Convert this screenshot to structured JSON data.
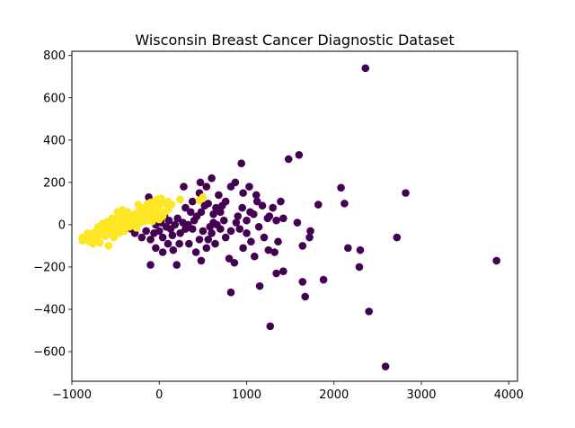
{
  "chart_data": {
    "type": "scatter",
    "title": "Wisconsin Breast Cancer Diagnostic Dataset",
    "xlabel": "",
    "ylabel": "",
    "xlim": [
      -1000,
      4100
    ],
    "ylim": [
      -740,
      820
    ],
    "xticks": [
      -1000,
      0,
      1000,
      2000,
      3000,
      4000
    ],
    "yticks": [
      -600,
      -400,
      -200,
      0,
      200,
      400,
      600,
      800
    ],
    "grid": false,
    "legend": "none",
    "colors": {
      "class_0": "#440154",
      "class_1": "#fde725"
    },
    "series": [
      {
        "color": "#440154",
        "points": [
          [
            2360,
            740
          ],
          [
            1600,
            330
          ],
          [
            1480,
            310
          ],
          [
            940,
            290
          ],
          [
            2820,
            150
          ],
          [
            2080,
            175
          ],
          [
            2120,
            100
          ],
          [
            1820,
            95
          ],
          [
            1580,
            10
          ],
          [
            1390,
            110
          ],
          [
            1000,
            20
          ],
          [
            1040,
            60
          ],
          [
            870,
            200
          ],
          [
            820,
            180
          ],
          [
            720,
            90
          ],
          [
            680,
            140
          ],
          [
            650,
            80
          ],
          [
            620,
            50
          ],
          [
            560,
            100
          ],
          [
            520,
            90
          ],
          [
            480,
            60
          ],
          [
            430,
            40
          ],
          [
            400,
            20
          ],
          [
            360,
            60
          ],
          [
            330,
            0
          ],
          [
            300,
            -20
          ],
          [
            270,
            10
          ],
          [
            240,
            -40
          ],
          [
            210,
            30
          ],
          [
            180,
            0
          ],
          [
            150,
            -50
          ],
          [
            130,
            -20
          ],
          [
            110,
            20
          ],
          [
            80,
            -10
          ],
          [
            60,
            40
          ],
          [
            40,
            -60
          ],
          [
            20,
            10
          ],
          [
            0,
            -30
          ],
          [
            -20,
            20
          ],
          [
            -40,
            0
          ],
          [
            -60,
            -40
          ],
          [
            -80,
            30
          ],
          [
            -100,
            -70
          ],
          [
            -120,
            50
          ],
          [
            -150,
            -30
          ],
          [
            -180,
            20
          ],
          [
            -200,
            -60
          ],
          [
            -240,
            10
          ],
          [
            -280,
            -40
          ],
          [
            -320,
            -20
          ],
          [
            900,
            40
          ],
          [
            950,
            80
          ],
          [
            1080,
            50
          ],
          [
            1120,
            110
          ],
          [
            1180,
            90
          ],
          [
            1260,
            40
          ],
          [
            1300,
            80
          ],
          [
            1340,
            20
          ],
          [
            1420,
            30
          ],
          [
            820,
            -30
          ],
          [
            760,
            -60
          ],
          [
            700,
            -20
          ],
          [
            640,
            -90
          ],
          [
            600,
            -40
          ],
          [
            540,
            -110
          ],
          [
            500,
            -30
          ],
          [
            460,
            -70
          ],
          [
            420,
            -130
          ],
          [
            380,
            -20
          ],
          [
            340,
            -90
          ],
          [
            820,
            -320
          ],
          [
            1270,
            -480
          ],
          [
            1340,
            -230
          ],
          [
            1420,
            -220
          ],
          [
            1670,
            -340
          ],
          [
            1150,
            -290
          ],
          [
            1880,
            -260
          ],
          [
            1640,
            -270
          ],
          [
            2400,
            -410
          ],
          [
            2590,
            -670
          ],
          [
            3860,
            -170
          ],
          [
            2290,
            -200
          ],
          [
            2300,
            -120
          ],
          [
            2160,
            -110
          ],
          [
            2720,
            -60
          ],
          [
            1720,
            -60
          ],
          [
            1730,
            -30
          ],
          [
            1640,
            -100
          ],
          [
            1050,
            -80
          ],
          [
            1090,
            -150
          ],
          [
            1250,
            -120
          ],
          [
            1320,
            -130
          ],
          [
            1200,
            -60
          ],
          [
            960,
            -110
          ],
          [
            860,
            -180
          ],
          [
            800,
            -160
          ],
          [
            560,
            -70
          ],
          [
            480,
            -170
          ],
          [
            200,
            -190
          ],
          [
            -100,
            -190
          ],
          [
            1110,
            140
          ],
          [
            1030,
            180
          ],
          [
            960,
            150
          ],
          [
            760,
            110
          ],
          [
            600,
            220
          ],
          [
            540,
            180
          ],
          [
            470,
            200
          ],
          [
            280,
            180
          ],
          [
            920,
            -20
          ],
          [
            1000,
            -40
          ],
          [
            880,
            10
          ],
          [
            740,
            20
          ],
          [
            660,
            0
          ],
          [
            380,
            110
          ],
          [
            300,
            80
          ],
          [
            230,
            -90
          ],
          [
            160,
            -120
          ],
          [
            100,
            -90
          ],
          [
            40,
            -130
          ],
          [
            -40,
            -110
          ],
          [
            1240,
            30
          ],
          [
            1140,
            -10
          ],
          [
            1360,
            -80
          ],
          [
            700,
            60
          ],
          [
            460,
            150
          ],
          [
            -120,
            130
          ],
          [
            620,
            10
          ],
          [
            580,
            -10
          ]
        ]
      },
      {
        "color": "#fde725",
        "points": [
          [
            -880,
            -75
          ],
          [
            -840,
            -60
          ],
          [
            -800,
            -80
          ],
          [
            -780,
            -55
          ],
          [
            -760,
            -40
          ],
          [
            -740,
            -70
          ],
          [
            -720,
            -30
          ],
          [
            -700,
            -50
          ],
          [
            -680,
            -20
          ],
          [
            -660,
            -45
          ],
          [
            -640,
            -10
          ],
          [
            -620,
            -35
          ],
          [
            -600,
            -5
          ],
          [
            -580,
            -25
          ],
          [
            -560,
            10
          ],
          [
            -540,
            -15
          ],
          [
            -520,
            20
          ],
          [
            -500,
            -5
          ],
          [
            -480,
            30
          ],
          [
            -460,
            5
          ],
          [
            -440,
            40
          ],
          [
            -420,
            15
          ],
          [
            -400,
            50
          ],
          [
            -380,
            25
          ],
          [
            -360,
            60
          ],
          [
            -340,
            35
          ],
          [
            -320,
            20
          ],
          [
            -300,
            45
          ],
          [
            -280,
            10
          ],
          [
            -260,
            55
          ],
          [
            -240,
            30
          ],
          [
            -220,
            70
          ],
          [
            -200,
            40
          ],
          [
            -180,
            80
          ],
          [
            -160,
            50
          ],
          [
            -140,
            95
          ],
          [
            -120,
            60
          ],
          [
            -100,
            105
          ],
          [
            -80,
            70
          ],
          [
            -60,
            110
          ],
          [
            -40,
            80
          ],
          [
            -20,
            120
          ],
          [
            0,
            90
          ],
          [
            20,
            125
          ],
          [
            60,
            100
          ],
          [
            100,
            110
          ],
          [
            140,
            95
          ],
          [
            240,
            120
          ],
          [
            -580,
            -100
          ],
          [
            -680,
            -85
          ],
          [
            -760,
            -90
          ],
          [
            -520,
            -60
          ],
          [
            -460,
            -40
          ],
          [
            -400,
            -30
          ],
          [
            -340,
            -10
          ],
          [
            -300,
            0
          ],
          [
            -260,
            -15
          ],
          [
            -220,
            10
          ],
          [
            -180,
            15
          ],
          [
            -140,
            20
          ],
          [
            -100,
            35
          ],
          [
            -60,
            30
          ],
          [
            -20,
            45
          ],
          [
            20,
            55
          ],
          [
            60,
            60
          ],
          [
            100,
            70
          ],
          [
            -620,
            -55
          ],
          [
            -560,
            -45
          ],
          [
            -500,
            -30
          ],
          [
            -440,
            -20
          ],
          [
            -380,
            0
          ],
          [
            -320,
            -5
          ],
          [
            -480,
            60
          ],
          [
            -420,
            70
          ],
          [
            -360,
            5
          ],
          [
            -700,
            -10
          ],
          [
            -650,
            5
          ],
          [
            -600,
            15
          ],
          [
            -540,
            30
          ],
          [
            -880,
            -60
          ],
          [
            -820,
            -40
          ],
          [
            460,
            115
          ],
          [
            500,
            130
          ],
          [
            -240,
            95
          ],
          [
            -160,
            30
          ],
          [
            -80,
            15
          ],
          [
            0,
            25
          ],
          [
            40,
            40
          ]
        ]
      }
    ]
  }
}
